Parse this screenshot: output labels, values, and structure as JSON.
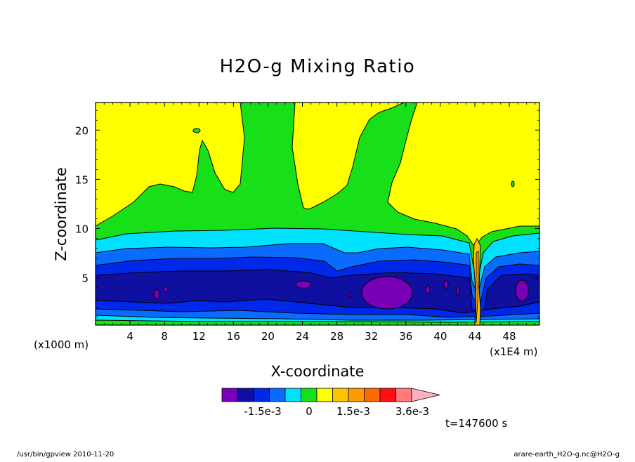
{
  "chart_data": {
    "type": "contour",
    "title": "H2O-g Mixing Ratio",
    "xlabel": "X-coordinate",
    "ylabel": "Z-coordinate",
    "x_unit_left": "(x1000 m)",
    "x_unit_right": "(x1E4 m)",
    "x_ticks": [
      "4",
      "8",
      "12",
      "16",
      "20",
      "24",
      "28",
      "32",
      "36",
      "40",
      "44",
      "48"
    ],
    "y_ticks": [
      "5",
      "10",
      "15",
      "20"
    ],
    "xlim": [
      0,
      51.5
    ],
    "ylim": [
      0.2,
      22.8
    ],
    "colorbar": {
      "levels": [
        "-1.5e-3",
        "0",
        "1.5e-3",
        "3.6e-3"
      ],
      "colors": [
        "#7a00b8",
        "#1010a0",
        "#0028e8",
        "#0a6cff",
        "#00e0ff",
        "#18e018",
        "#ffff00",
        "#ffc400",
        "#ff9a00",
        "#ff6a00",
        "#ff1010",
        "#ff7a7a",
        "#ffb0c0"
      ]
    },
    "time_label": "t=147600 s",
    "colors": {
      "yellow": "#ffff00",
      "green": "#18e018",
      "cyan": "#00e0ff",
      "light_blue": "#0a6cff",
      "blue": "#0028e8",
      "navy": "#1010a0",
      "purple": "#7a00b8",
      "orange": "#ffc400"
    }
  },
  "footer": {
    "left": "/usr/bin/gpview  2010-11-20",
    "right": "arare-earth_H2O-g.nc@H2O-g"
  }
}
